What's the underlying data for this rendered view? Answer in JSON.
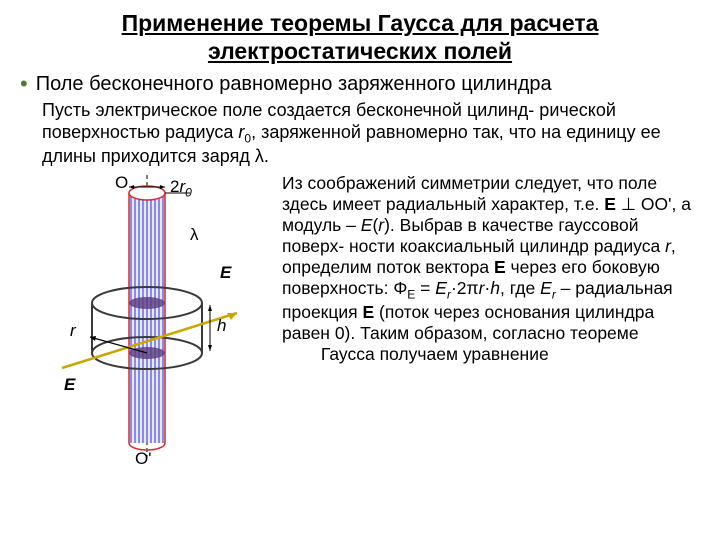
{
  "title_line1": "Применение теоремы Гаусса для расчета",
  "title_line2": "электростатических полей",
  "subtitle": "Поле бесконечного равномерно заряженного цилиндра",
  "intro_html": "Пусть электрическое поле создается бесконечной цилинд-\nрической поверхностью радиуса <span class='italic'>r</span><span class='sub'>0</span>, заряженной равномерно так, что на единицу ее длины приходится заряд λ.",
  "explain_html": "Из соображений симметрии следует, что поле здесь имеет радиальный характер, т.е. <span class='bold'>E</span> ⊥ OO', а модуль – <span class='italic'>E</span>(<span class='italic'>r</span>). Выбрав в качестве гауссовой поверх-\nности коаксиальный цилиндр радиуса <span class='italic'>r</span>, определим поток вектора <span class='bold'>E</span> через его боковую поверхность: Φ<span class='sub'>E</span> = <span class='italic'>E<span class='sub'>r</span></span>·2π<span class='italic'>r</span>·<span class='italic'>h</span>, где <span class='italic'>E<span class='sub'>r</span></span> – радиальная проекция <span class='bold'>E</span> (поток через основания цилиндра равен 0). Таким образом, согласно теореме &nbsp;&nbsp;&nbsp;&nbsp;&nbsp;&nbsp;&nbsp;&nbsp;Гаусса получаем уравнение",
  "labels": {
    "O": "O",
    "Oprime": "O'",
    "two_r0": "2",
    "r0_sub": "r",
    "r0_sub0": "0",
    "lambda": "λ",
    "E": "E",
    "E2": "E",
    "h": "h",
    "r": "r"
  },
  "colors": {
    "cylinder_fill": "#e8e8ff",
    "cylinder_stripe": "#2b2bd0",
    "cylinder_outline": "#d02b2b",
    "gauss_outline": "#3a3a3a",
    "axis": "#000000",
    "field_arrow": "#c8a800"
  }
}
